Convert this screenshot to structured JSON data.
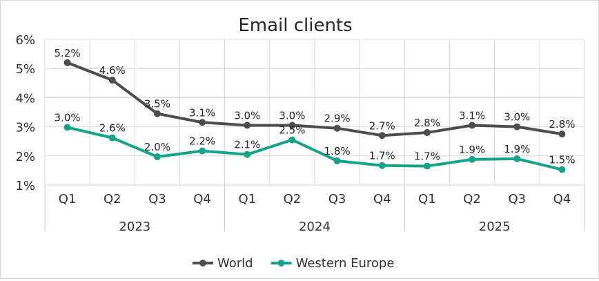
{
  "chart_data": {
    "type": "line",
    "title": "Email clients",
    "categories": [
      "Q1",
      "Q2",
      "Q3",
      "Q4",
      "Q1",
      "Q2",
      "Q3",
      "Q4",
      "Q1",
      "Q2",
      "Q3",
      "Q4"
    ],
    "groups": [
      {
        "label": "2023",
        "span": 4
      },
      {
        "label": "2024",
        "span": 4
      },
      {
        "label": "2025",
        "span": 4
      }
    ],
    "ylim": [
      1,
      6
    ],
    "yticks": [
      "1%",
      "2%",
      "3%",
      "4%",
      "5%",
      "6%"
    ],
    "grid": true,
    "legend_position": "bottom",
    "series": [
      {
        "name": "World",
        "color": "#4d4d4d",
        "values": [
          5.2,
          4.6,
          3.45,
          3.15,
          3.05,
          3.05,
          2.95,
          2.7,
          2.8,
          3.05,
          3.0,
          2.75
        ],
        "labels": [
          "5.2%",
          "4.6%",
          "3.5%",
          "3.1%",
          "3.0%",
          "3.0%",
          "2.9%",
          "2.7%",
          "2.8%",
          "3.1%",
          "3.0%",
          "2.8%"
        ]
      },
      {
        "name": "Western Europe",
        "color": "#14a38b",
        "values": [
          2.98,
          2.62,
          1.97,
          2.17,
          2.05,
          2.55,
          1.83,
          1.67,
          1.65,
          1.88,
          1.9,
          1.53
        ],
        "labels": [
          "3.0%",
          "2.6%",
          "2.0%",
          "2.2%",
          "2.1%",
          "2.5%",
          "1.8%",
          "1.7%",
          "1.7%",
          "1.9%",
          "1.9%",
          "1.5%"
        ]
      }
    ]
  }
}
